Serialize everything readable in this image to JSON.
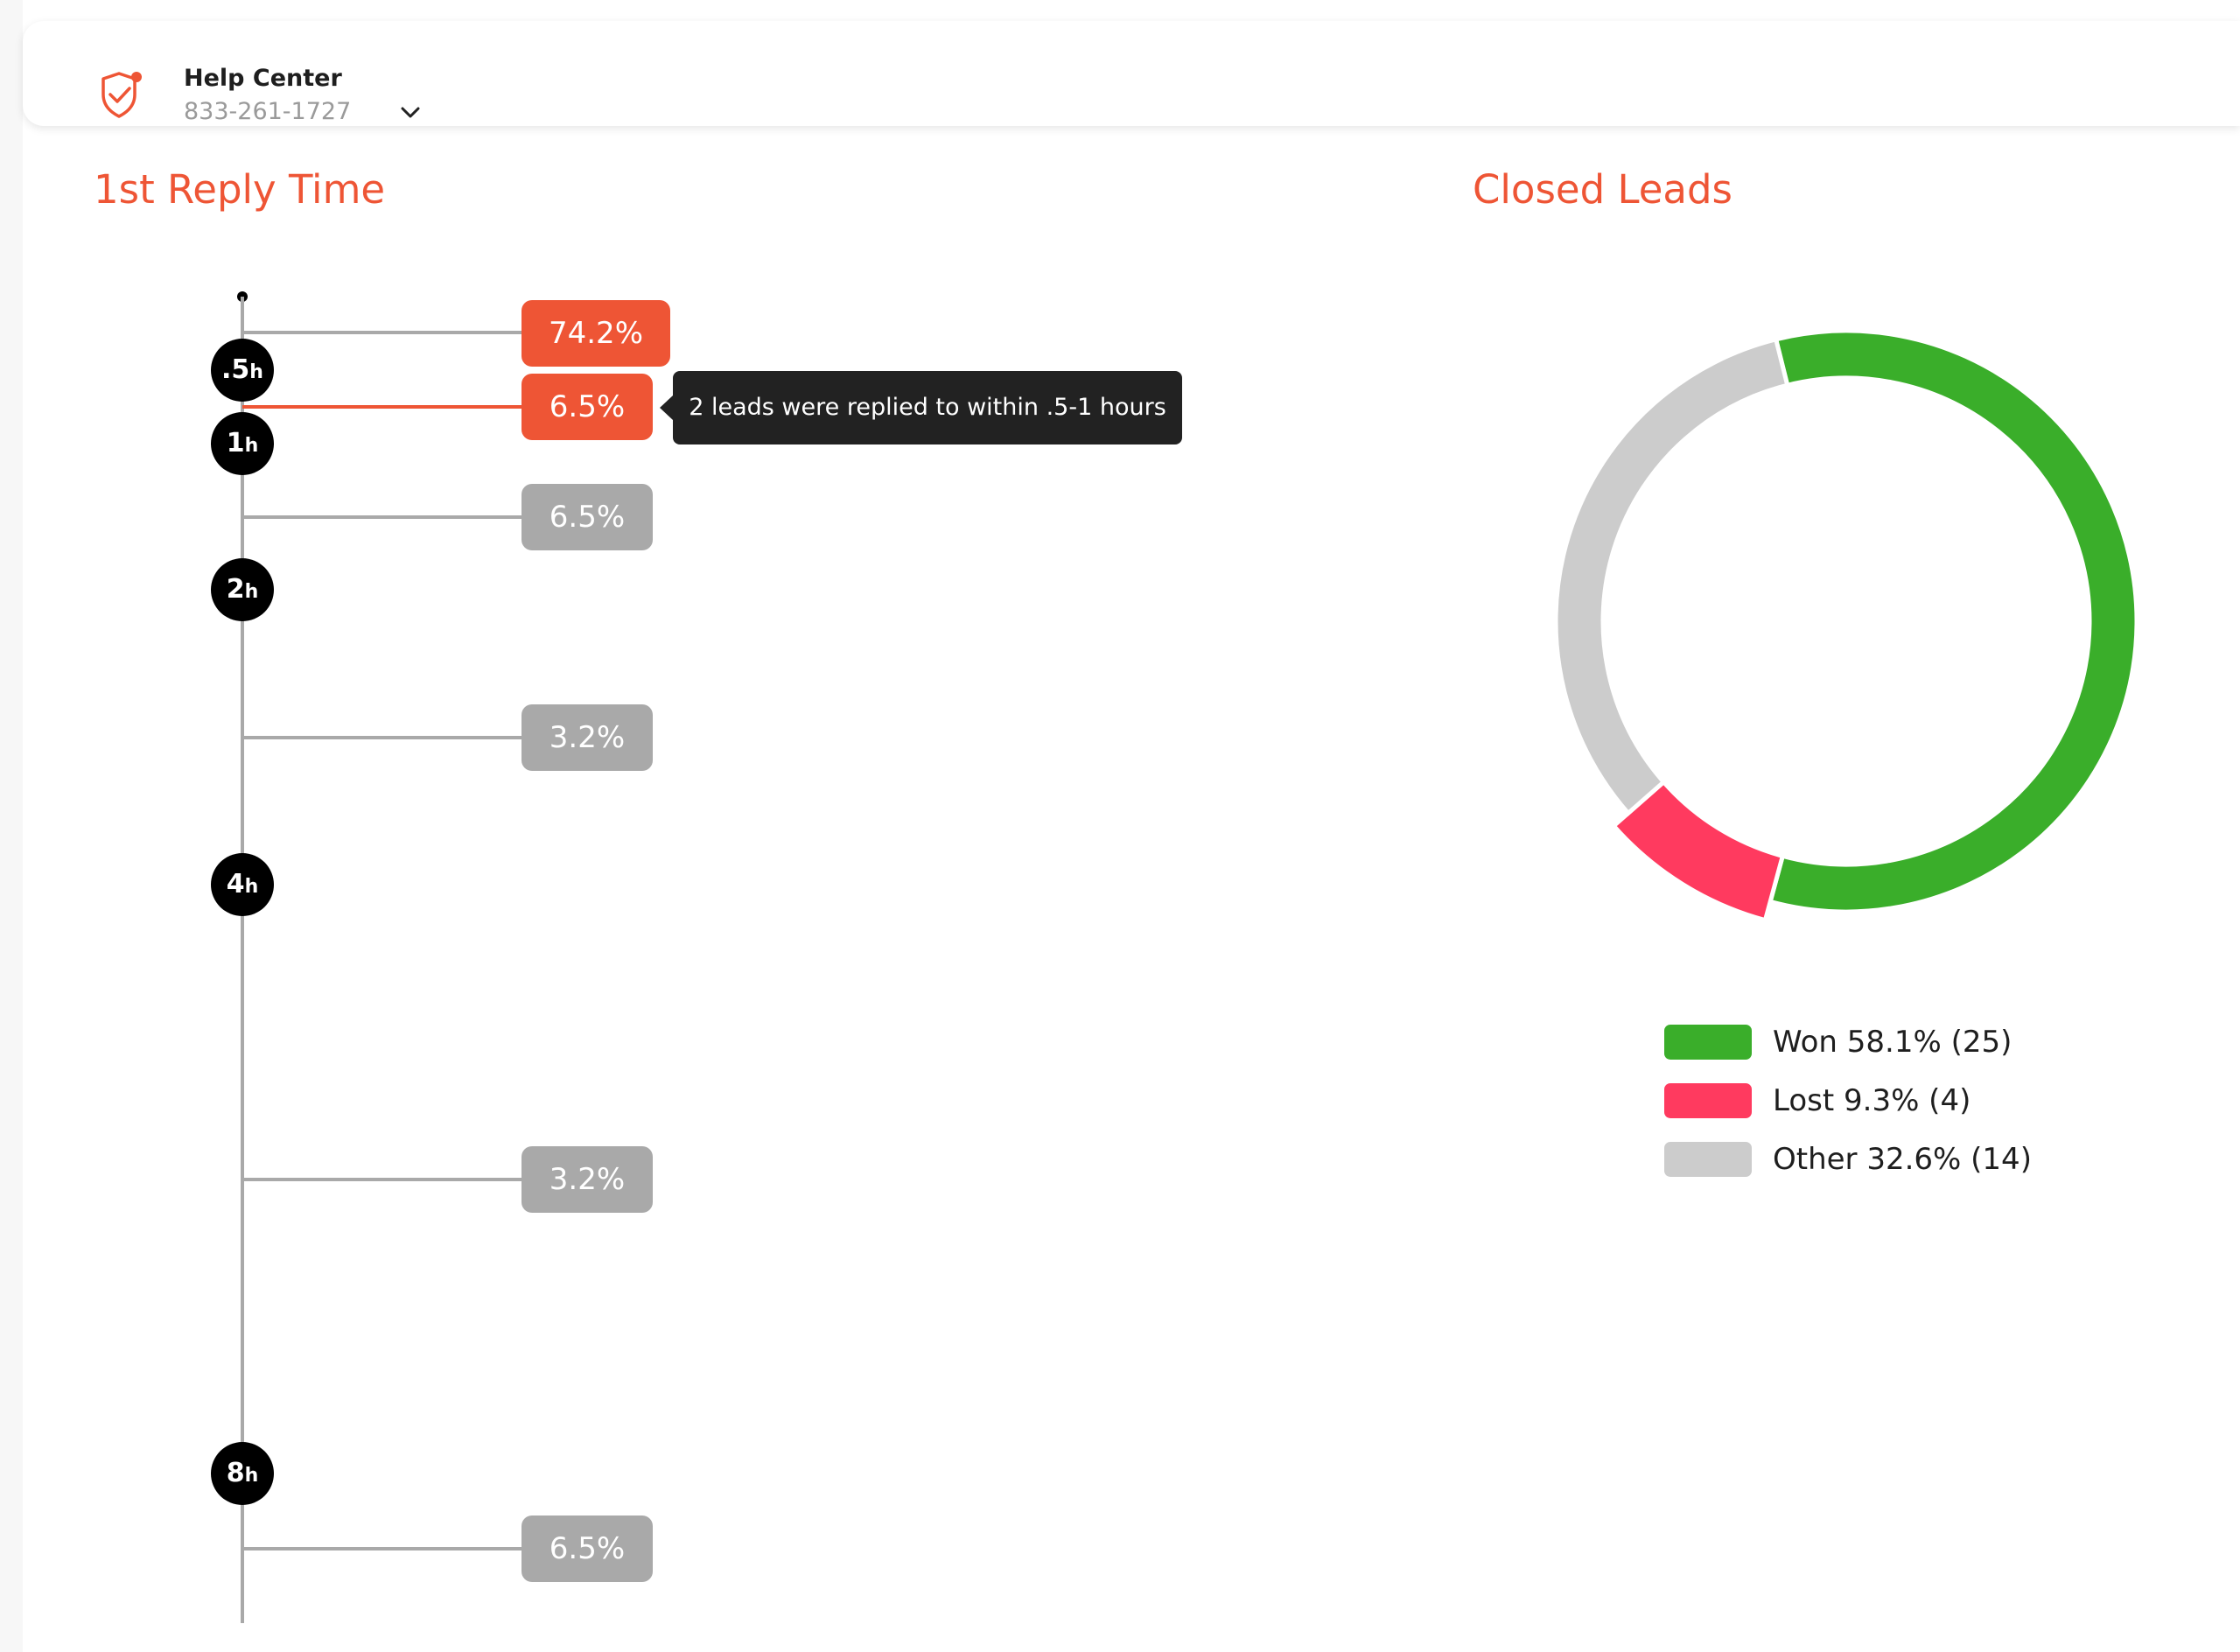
{
  "header": {
    "account_name": "Help Center",
    "account_phone": "833-261-1727",
    "logo_icon": "shield-check-icon",
    "dropdown_icon": "chevron-down-icon"
  },
  "reply_time": {
    "title": "1st Reply Time",
    "nodes": [
      {
        "value": ".5",
        "unit": "h"
      },
      {
        "value": "1",
        "unit": "h"
      },
      {
        "value": "2",
        "unit": "h"
      },
      {
        "value": "4",
        "unit": "h"
      },
      {
        "value": "8",
        "unit": "h"
      }
    ],
    "buckets": [
      {
        "label": "74.2%",
        "value": 74.2,
        "active": true
      },
      {
        "label": "6.5%",
        "value": 6.5,
        "active": true
      },
      {
        "label": "6.5%",
        "value": 6.5,
        "active": false
      },
      {
        "label": "3.2%",
        "value": 3.2,
        "active": false
      },
      {
        "label": "3.2%",
        "value": 3.2,
        "active": false
      },
      {
        "label": "6.5%",
        "value": 6.5,
        "active": false
      }
    ],
    "tooltip": "2 leads were replied to within .5-1 hours",
    "colors": {
      "active": "#ee5535",
      "idle": "#a9a9a9",
      "axis": "#a9a9a9",
      "node": "#000000"
    }
  },
  "closed_leads": {
    "title": "Closed Leads",
    "legend": [
      {
        "label": "Won 58.1% (25)",
        "color": "#3aae2a"
      },
      {
        "label": "Lost 9.3% (4)",
        "color": "#ff3a5f"
      },
      {
        "label": "Other 32.6% (14)",
        "color": "#cccccc"
      }
    ]
  },
  "chart_data": {
    "type": "pie",
    "title": "Closed Leads",
    "categories": [
      "Won",
      "Lost",
      "Other"
    ],
    "values": [
      58.1,
      9.3,
      32.6
    ],
    "counts": [
      25,
      4,
      14
    ],
    "colors": [
      "#3aae2a",
      "#ff3a5f",
      "#cccccc"
    ],
    "highlighted": "Lost",
    "legend": "bottom"
  }
}
